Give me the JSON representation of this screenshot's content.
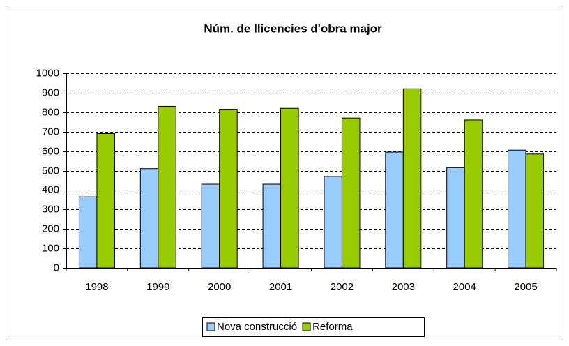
{
  "chart_data": {
    "type": "bar",
    "title": "Núm. de llicencies d'obra major",
    "categories": [
      "1998",
      "1999",
      "2000",
      "2001",
      "2002",
      "2003",
      "2004",
      "2005"
    ],
    "series": [
      {
        "name": "Nova construcció",
        "color": "#99ccff",
        "values": [
          365,
          510,
          430,
          430,
          470,
          595,
          515,
          605
        ]
      },
      {
        "name": "Reforma",
        "color": "#99cc00",
        "values": [
          690,
          830,
          815,
          820,
          770,
          920,
          760,
          585
        ]
      }
    ],
    "ylim": [
      0,
      1000
    ],
    "yticks": [
      0,
      100,
      200,
      300,
      400,
      500,
      600,
      700,
      800,
      900,
      1000
    ],
    "grid": true,
    "legend": "bottom"
  }
}
